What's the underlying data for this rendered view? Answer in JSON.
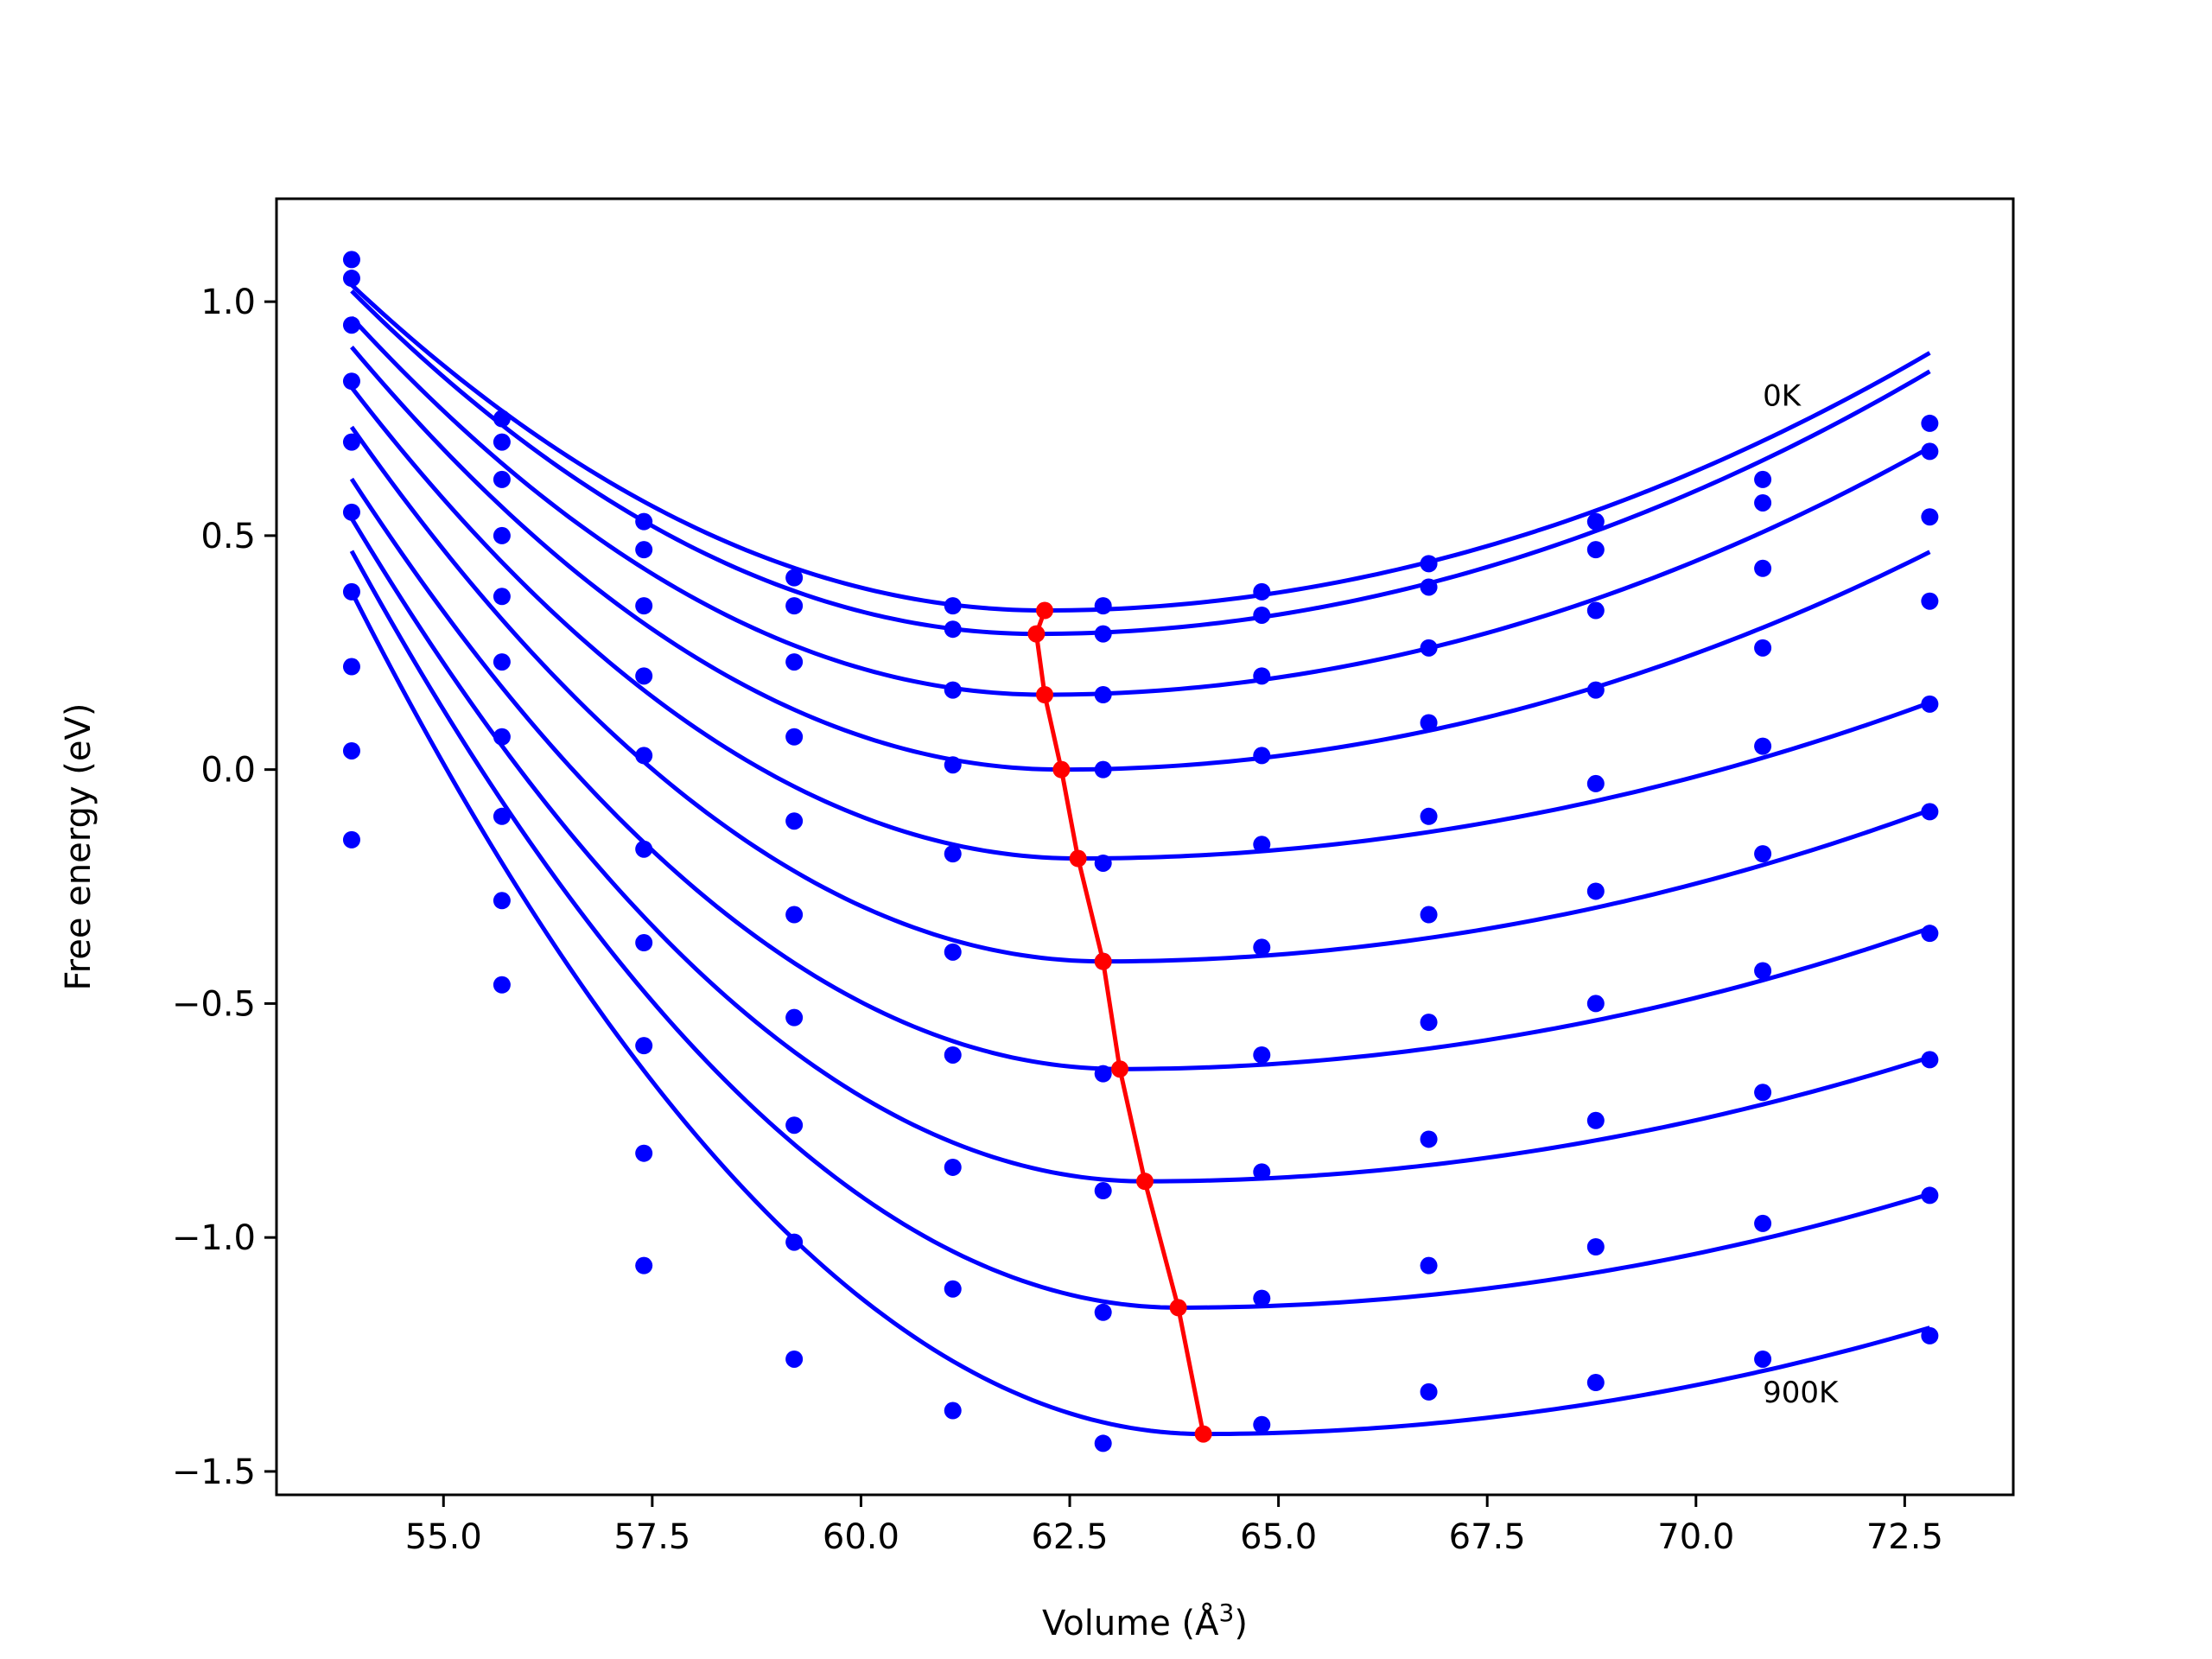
{
  "chart_data": {
    "type": "line",
    "title": "",
    "xlabel": "Volume (Å",
    "xlabel_sup": "3",
    "xlabel_close": ")",
    "ylabel": "Free energy (eV)",
    "xlim": [
      53.0,
      73.8
    ],
    "ylim": [
      -1.55,
      1.22
    ],
    "grid": false,
    "legend": "none",
    "x_ticks": [
      55.0,
      57.5,
      60.0,
      62.5,
      65.0,
      67.5,
      70.0,
      72.5
    ],
    "x_tick_labels": [
      "55.0",
      "57.5",
      "60.0",
      "62.5",
      "65.0",
      "67.5",
      "70.0",
      "72.5"
    ],
    "y_ticks": [
      1.0,
      0.5,
      0.0,
      -0.5,
      -1.0,
      -1.5
    ],
    "y_tick_labels": [
      "1.0",
      "0.5",
      "0.0",
      "−0.5",
      "−1.0",
      "−1.5"
    ],
    "annotations": [
      {
        "text": "0K",
        "x": 70.8,
        "y": 0.8
      },
      {
        "text": "900K",
        "x": 70.8,
        "y": -1.33
      }
    ],
    "colors": {
      "series": "#0000ff",
      "minimum": "#ff0000",
      "frame": "#000000"
    },
    "volumes": [
      53.9,
      55.7,
      57.4,
      59.2,
      61.1,
      62.9,
      64.8,
      66.8,
      68.8,
      70.8,
      72.8
    ],
    "series": [
      {
        "name": "0K",
        "points": [
          1.09,
          0.75,
          0.53,
          0.41,
          0.35,
          0.35,
          0.38,
          0.44,
          0.53,
          0.62,
          0.74
        ],
        "fit": {
          "min_volume": 62.2,
          "min_energy": 0.34,
          "a_left": 0.0101,
          "a_right": 0.0049
        }
      },
      {
        "points": [
          1.05,
          0.7,
          0.47,
          0.35,
          0.3,
          0.29,
          0.33,
          0.39,
          0.47,
          0.57,
          0.68
        ],
        "fit": {
          "min_volume": 62.1,
          "min_energy": 0.29,
          "a_left": 0.0109,
          "a_right": 0.0049
        }
      },
      {
        "points": [
          0.95,
          0.62,
          0.35,
          0.23,
          0.17,
          0.16,
          0.2,
          0.26,
          0.34,
          0.43,
          0.54
        ],
        "fit": {
          "min_volume": 62.2,
          "min_energy": 0.16,
          "a_left": 0.0117,
          "a_right": 0.0047
        }
      },
      {
        "points": [
          0.83,
          0.5,
          0.2,
          0.07,
          0.01,
          0.0,
          0.03,
          0.1,
          0.17,
          0.26,
          0.36
        ],
        "fit": {
          "min_volume": 62.4,
          "min_energy": 0.0,
          "a_left": 0.0125,
          "a_right": 0.0043
        }
      },
      {
        "points": [
          0.7,
          0.37,
          0.03,
          -0.11,
          -0.18,
          -0.2,
          -0.16,
          -0.1,
          -0.03,
          0.05,
          0.14
        ],
        "fit": {
          "min_volume": 62.6,
          "min_energy": -0.19,
          "a_left": 0.0133,
          "a_right": 0.0032
        }
      },
      {
        "points": [
          0.55,
          0.23,
          -0.17,
          -0.31,
          -0.39,
          -0.41,
          -0.38,
          -0.31,
          -0.26,
          -0.18,
          -0.09
        ],
        "fit": {
          "min_volume": 62.9,
          "min_energy": -0.41,
          "a_left": 0.0141,
          "a_right": 0.0033
        }
      },
      {
        "points": [
          0.38,
          0.07,
          -0.37,
          -0.53,
          -0.61,
          -0.65,
          -0.61,
          -0.54,
          -0.5,
          -0.43,
          -0.35
        ],
        "fit": {
          "min_volume": 63.1,
          "min_energy": -0.64,
          "a_left": 0.0149,
          "a_right": 0.0032
        }
      },
      {
        "points": [
          0.22,
          -0.1,
          -0.59,
          -0.76,
          -0.85,
          -0.9,
          -0.86,
          -0.79,
          -0.75,
          -0.69,
          -0.62
        ],
        "fit": {
          "min_volume": 63.4,
          "min_energy": -0.88,
          "a_left": 0.0157,
          "a_right": 0.003
        }
      },
      {
        "points": [
          0.04,
          -0.28,
          -0.82,
          -1.01,
          -1.11,
          -1.16,
          -1.13,
          -1.06,
          -1.02,
          -0.97,
          -0.91
        ],
        "fit": {
          "min_volume": 63.8,
          "min_energy": -1.15,
          "a_left": 0.0165,
          "a_right": 0.003
        }
      },
      {
        "name": "900K",
        "points": [
          -0.15,
          -0.46,
          -1.06,
          -1.26,
          -1.37,
          -1.44,
          -1.4,
          -1.33,
          -1.31,
          -1.26,
          -1.21
        ],
        "fit": {
          "min_volume": 64.1,
          "min_energy": -1.42,
          "a_left": 0.0173,
          "a_right": 0.003
        }
      }
    ],
    "minimum_line": {
      "x": [
        62.2,
        62.1,
        62.2,
        62.4,
        62.6,
        62.9,
        63.1,
        63.4,
        63.8,
        64.1
      ],
      "y": [
        0.34,
        0.29,
        0.16,
        0.0,
        -0.19,
        -0.41,
        -0.64,
        -0.88,
        -1.15,
        -1.42
      ]
    }
  }
}
